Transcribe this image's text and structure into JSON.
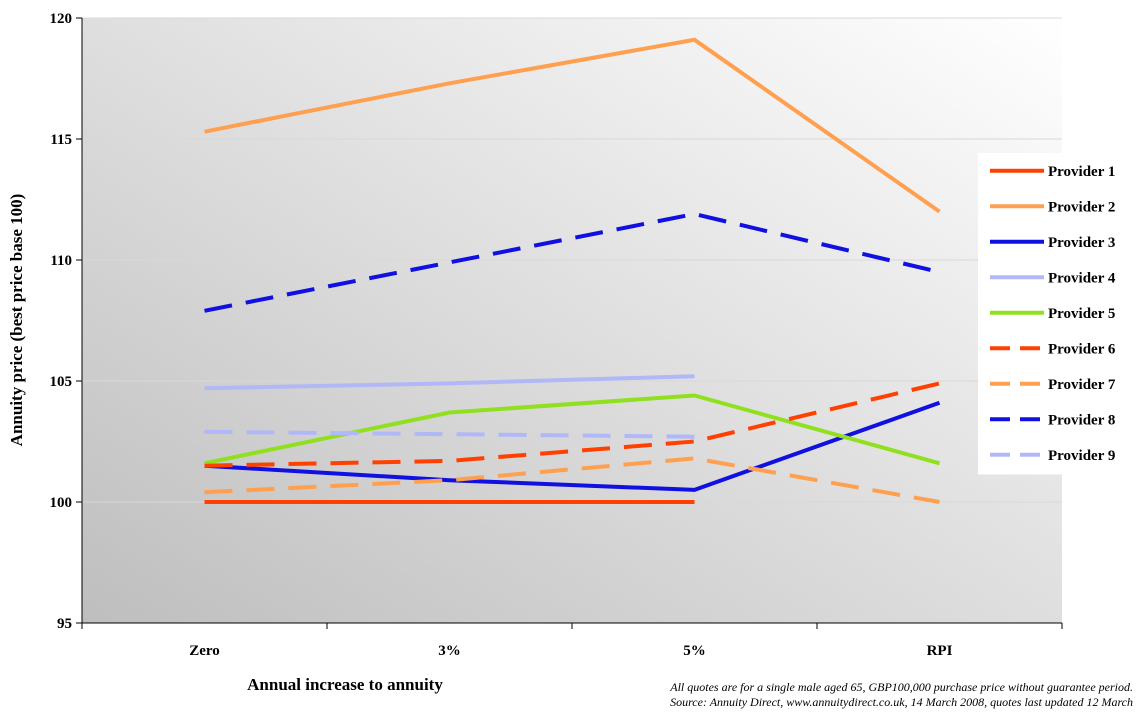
{
  "chart_data": {
    "type": "line",
    "categories": [
      "Zero",
      "3%",
      "5%",
      "RPI"
    ],
    "xlabel": "Annual increase to annuity",
    "ylabel": "Annuity price (best price base 100)",
    "ylim": [
      95,
      120
    ],
    "yticks": [
      95,
      100,
      105,
      110,
      115,
      120
    ],
    "grid": true,
    "legend_position": "right",
    "series": [
      {
        "name": "Provider 1",
        "color": "#ff4000",
        "dash": "solid",
        "values": [
          100.0,
          100.0,
          100.0,
          null
        ]
      },
      {
        "name": "Provider 2",
        "color": "#ffa050",
        "dash": "solid",
        "values": [
          115.3,
          117.3,
          119.1,
          112.0
        ]
      },
      {
        "name": "Provider 3",
        "color": "#1010e0",
        "dash": "solid",
        "values": [
          101.5,
          100.9,
          100.5,
          104.1
        ]
      },
      {
        "name": "Provider 4",
        "color": "#b0b8f8",
        "dash": "solid",
        "values": [
          104.7,
          104.9,
          105.2,
          null
        ]
      },
      {
        "name": "Provider 5",
        "color": "#90e020",
        "dash": "solid",
        "values": [
          101.6,
          103.7,
          104.4,
          101.6
        ]
      },
      {
        "name": "Provider 6",
        "color": "#ff4000",
        "dash": "dashed",
        "values": [
          101.5,
          101.7,
          102.5,
          104.9
        ]
      },
      {
        "name": "Provider 7",
        "color": "#ffa050",
        "dash": "dashed",
        "values": [
          100.4,
          100.9,
          101.8,
          100.0
        ]
      },
      {
        "name": "Provider 8",
        "color": "#1010e0",
        "dash": "dashed",
        "values": [
          107.9,
          109.9,
          111.9,
          109.5
        ]
      },
      {
        "name": "Provider 9",
        "color": "#b0b8f8",
        "dash": "dashed",
        "values": [
          102.9,
          102.8,
          102.7,
          null
        ]
      }
    ]
  },
  "notes": {
    "line1": "All quotes are for a single male aged 65, GBP100,000 purchase price  without guarantee period.",
    "line2": "Source: Annuity Direct, www.annuitydirect.co.uk, 14 March 2008, quotes last updated 12 March"
  }
}
